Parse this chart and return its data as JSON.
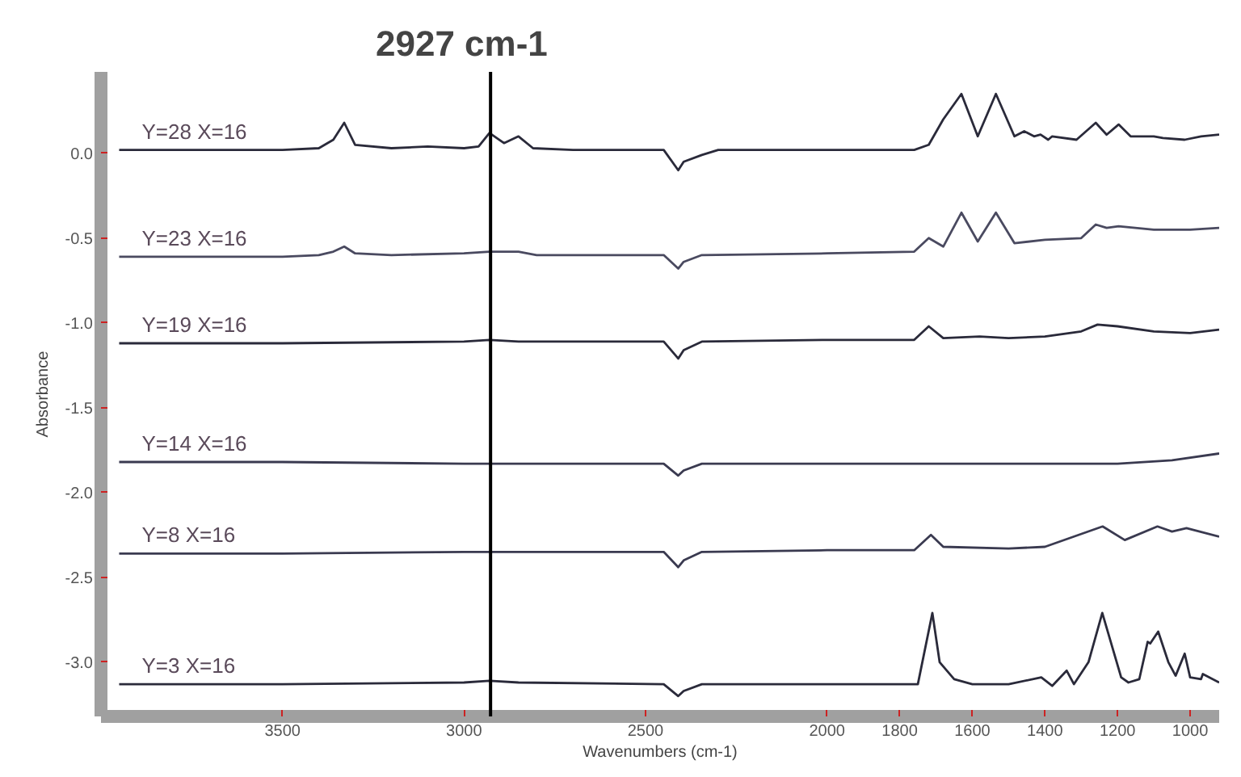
{
  "chart_data": {
    "type": "line",
    "title": "2927 cm-1",
    "xlabel": "Wavenumbers (cm-1)",
    "ylabel": "Absorbance",
    "xlim": [
      4000,
      920
    ],
    "ylim": [
      -3.32,
      0.48
    ],
    "xticks": [
      3500,
      3000,
      2500,
      2000,
      1800,
      1600,
      1400,
      1200,
      1000
    ],
    "yticks": [
      {
        "value": 0,
        "label": "0.0"
      },
      {
        "value": -0.5,
        "label": "-0.5"
      },
      {
        "value": -1,
        "label": "-1.0"
      },
      {
        "value": -1.5,
        "label": "-1.5"
      },
      {
        "value": -2,
        "label": "-2.0"
      },
      {
        "value": -2.5,
        "label": "-2.5"
      },
      {
        "value": -3,
        "label": "-3.0"
      }
    ],
    "grid": false,
    "marker": "none",
    "line_style": "solid",
    "ref_lines": [
      {
        "axis": "x",
        "value": 2927,
        "color": "#000000"
      }
    ],
    "series": [
      {
        "name": "Y=28  X=16",
        "color": "#2a2a3a",
        "x": [
          3950,
          3500,
          3400,
          3360,
          3330,
          3300,
          3200,
          3100,
          3000,
          2960,
          2930,
          2890,
          2850,
          2810,
          2700,
          2450,
          2410,
          2395,
          2345,
          2300,
          2000,
          1760,
          1720,
          1680,
          1630,
          1585,
          1535,
          1484,
          1457,
          1430,
          1412,
          1391,
          1380,
          1313,
          1260,
          1230,
          1197,
          1164,
          1100,
          1075,
          1015,
          970,
          920
        ],
        "values": [
          0.02,
          0.02,
          0.03,
          0.08,
          0.18,
          0.05,
          0.03,
          0.04,
          0.03,
          0.04,
          0.12,
          0.06,
          0.1,
          0.03,
          0.02,
          0.02,
          -0.1,
          -0.05,
          -0.01,
          0.02,
          0.02,
          0.02,
          0.05,
          0.2,
          0.35,
          0.1,
          0.35,
          0.1,
          0.13,
          0.1,
          0.11,
          0.08,
          0.1,
          0.08,
          0.18,
          0.11,
          0.17,
          0.1,
          0.1,
          0.09,
          0.08,
          0.1,
          0.11
        ]
      },
      {
        "name": "Y=23  X=16",
        "color": "#4a4a60",
        "x": [
          3950,
          3500,
          3400,
          3360,
          3330,
          3300,
          3200,
          3000,
          2930,
          2850,
          2800,
          2450,
          2410,
          2395,
          2345,
          2000,
          1760,
          1720,
          1680,
          1630,
          1585,
          1535,
          1484,
          1400,
          1300,
          1260,
          1230,
          1197,
          1100,
          1000,
          920
        ],
        "values": [
          -0.61,
          -0.61,
          -0.6,
          -0.58,
          -0.55,
          -0.59,
          -0.6,
          -0.59,
          -0.58,
          -0.58,
          -0.6,
          -0.6,
          -0.68,
          -0.64,
          -0.6,
          -0.59,
          -0.58,
          -0.5,
          -0.55,
          -0.35,
          -0.52,
          -0.35,
          -0.53,
          -0.51,
          -0.5,
          -0.42,
          -0.44,
          -0.43,
          -0.45,
          -0.45,
          -0.44
        ]
      },
      {
        "name": "Y=19  X=16",
        "color": "#2a2a3a",
        "x": [
          3950,
          3500,
          3000,
          2930,
          2850,
          2450,
          2410,
          2395,
          2345,
          2000,
          1760,
          1720,
          1680,
          1580,
          1500,
          1400,
          1300,
          1255,
          1200,
          1100,
          1000,
          920
        ],
        "values": [
          -1.12,
          -1.12,
          -1.11,
          -1.1,
          -1.11,
          -1.11,
          -1.21,
          -1.16,
          -1.11,
          -1.1,
          -1.1,
          -1.02,
          -1.09,
          -1.08,
          -1.09,
          -1.08,
          -1.05,
          -1.01,
          -1.02,
          -1.05,
          -1.06,
          -1.04
        ]
      },
      {
        "name": "Y=14  X=16",
        "color": "#3a3a50",
        "x": [
          3950,
          3500,
          3000,
          2450,
          2410,
          2395,
          2345,
          2000,
          1600,
          1200,
          1050,
          920
        ],
        "values": [
          -1.82,
          -1.82,
          -1.83,
          -1.83,
          -1.9,
          -1.87,
          -1.83,
          -1.83,
          -1.83,
          -1.83,
          -1.81,
          -1.77
        ]
      },
      {
        "name": "Y=8  X=16",
        "color": "#3a3a50",
        "x": [
          3950,
          3500,
          3000,
          2450,
          2410,
          2395,
          2345,
          2000,
          1760,
          1714,
          1680,
          1500,
          1400,
          1241,
          1180,
          1090,
          1050,
          1010,
          920
        ],
        "values": [
          -2.36,
          -2.36,
          -2.35,
          -2.35,
          -2.44,
          -2.4,
          -2.35,
          -2.34,
          -2.34,
          -2.25,
          -2.32,
          -2.33,
          -2.32,
          -2.2,
          -2.28,
          -2.2,
          -2.23,
          -2.21,
          -2.26
        ]
      },
      {
        "name": "Y=3  X=16",
        "color": "#2a2a3a",
        "x": [
          3950,
          3500,
          3000,
          2930,
          2850,
          2450,
          2410,
          2395,
          2345,
          2000,
          1750,
          1710,
          1690,
          1650,
          1600,
          1500,
          1410,
          1380,
          1340,
          1320,
          1280,
          1242,
          1190,
          1170,
          1140,
          1117,
          1110,
          1088,
          1060,
          1040,
          1015,
          1000,
          970,
          965,
          920
        ],
        "values": [
          -3.13,
          -3.13,
          -3.12,
          -3.11,
          -3.12,
          -3.13,
          -3.2,
          -3.17,
          -3.13,
          -3.13,
          -3.13,
          -2.71,
          -3.0,
          -3.1,
          -3.13,
          -3.13,
          -3.09,
          -3.14,
          -3.05,
          -3.13,
          -3.0,
          -2.71,
          -3.09,
          -3.12,
          -3.1,
          -2.88,
          -2.89,
          -2.82,
          -3.0,
          -3.08,
          -2.95,
          -3.09,
          -3.1,
          -3.07,
          -3.12
        ]
      }
    ]
  }
}
